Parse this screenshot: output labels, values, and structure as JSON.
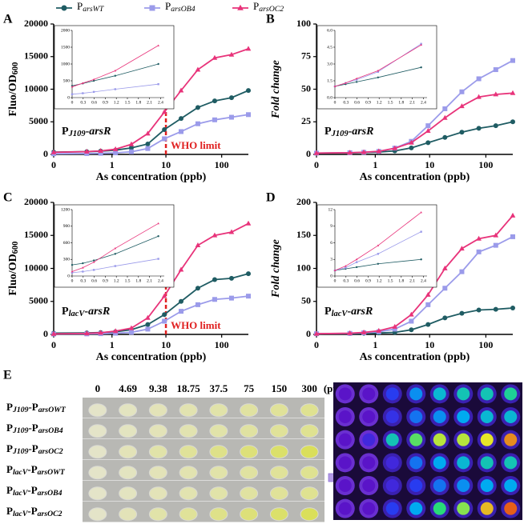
{
  "chart_data": [
    {
      "type": "line",
      "panel": "A",
      "ylabel": "Fluo/OD600",
      "xlabel": "As concentration (ppb)",
      "annotation": "PJ109-arsR",
      "threshold": {
        "x": 10,
        "label": "WHO limit"
      },
      "xscale": "log",
      "xlim": [
        0,
        300
      ],
      "xticks": [
        0,
        1,
        10,
        100
      ],
      "ylim": [
        0,
        20000
      ],
      "yticks": [
        0,
        5000,
        10000,
        15000,
        20000
      ],
      "x": [
        0,
        0.29,
        0.59,
        1.17,
        2.34,
        4.69,
        9.38,
        18.75,
        37.5,
        75,
        150,
        300
      ],
      "series": [
        {
          "name": "ParsWT",
          "color": "#1f5c63",
          "marker": "circle",
          "values": [
            350,
            420,
            500,
            650,
            1000,
            1600,
            3800,
            5500,
            7200,
            8200,
            8700,
            9800
          ]
        },
        {
          "name": "ParsOB4",
          "color": "#9b9bea",
          "marker": "square",
          "values": [
            100,
            130,
            170,
            250,
            400,
            900,
            2400,
            3500,
            4700,
            5300,
            5700,
            6100
          ]
        },
        {
          "name": "ParsOC2",
          "color": "#e8337a",
          "marker": "triangle",
          "values": [
            320,
            430,
            540,
            800,
            1550,
            3200,
            6500,
            9800,
            13000,
            14800,
            15300,
            16200
          ]
        }
      ]
    },
    {
      "type": "line",
      "inset": true,
      "xlim": [
        0,
        2.5
      ],
      "xticks": [
        0,
        0.3,
        0.6,
        0.9,
        1.2,
        1.5,
        1.8,
        2.1,
        2.4
      ],
      "ylim": [
        0,
        2000
      ],
      "yticks": [
        0,
        500,
        1000,
        1500,
        2000
      ],
      "x": [
        0,
        0.29,
        0.59,
        1.17,
        2.34
      ],
      "series": [
        {
          "color": "#1f5c63",
          "marker": "circle",
          "values": [
            350,
            420,
            500,
            650,
            1000
          ]
        },
        {
          "color": "#9b9bea",
          "marker": "square",
          "values": [
            100,
            130,
            170,
            250,
            400
          ]
        },
        {
          "color": "#e8337a",
          "marker": "triangle",
          "values": [
            320,
            430,
            540,
            800,
            1550
          ]
        }
      ]
    },
    {
      "type": "line",
      "panel": "B",
      "ylabel": "Fold change",
      "xlabel": "As concentration (ppb)",
      "annotation": "PJ109-arsR",
      "xscale": "log",
      "xlim": [
        0,
        300
      ],
      "xticks": [
        0,
        1,
        10,
        100
      ],
      "ylim": [
        0,
        100
      ],
      "yticks": [
        0,
        25,
        50,
        75,
        100
      ],
      "x": [
        0,
        0.29,
        0.59,
        1.17,
        2.34,
        4.69,
        9.38,
        18.75,
        37.5,
        75,
        150,
        300
      ],
      "series": [
        {
          "color": "#1f5c63",
          "marker": "circle",
          "values": [
            1,
            1.2,
            1.4,
            1.8,
            2.7,
            5,
            9,
            13,
            17,
            20,
            22,
            25
          ]
        },
        {
          "color": "#9b9bea",
          "marker": "square",
          "values": [
            1,
            1.3,
            1.6,
            2.3,
            4.8,
            10,
            22,
            35,
            48,
            58,
            65,
            72
          ]
        },
        {
          "color": "#e8337a",
          "marker": "triangle",
          "values": [
            1,
            1.3,
            1.7,
            2.4,
            4.7,
            9,
            18,
            28,
            37,
            44,
            46,
            47
          ]
        }
      ]
    },
    {
      "type": "line",
      "inset": true,
      "xlim": [
        0,
        2.5
      ],
      "xticks": [
        0,
        0.3,
        0.6,
        0.9,
        1.2,
        1.5,
        1.8,
        2.1,
        2.4
      ],
      "ylim": [
        0,
        6
      ],
      "yticks": [
        {
          "value": 0,
          "label": "0.0"
        },
        1.5,
        {
          "value": 3,
          "label": "3.0"
        },
        4.5,
        {
          "value": 6,
          "label": "6.0"
        }
      ],
      "x": [
        0,
        0.29,
        0.59,
        1.17,
        2.34
      ],
      "series": [
        {
          "color": "#1f5c63",
          "marker": "circle",
          "values": [
            1,
            1.2,
            1.4,
            1.8,
            2.7
          ]
        },
        {
          "color": "#9b9bea",
          "marker": "square",
          "values": [
            1,
            1.3,
            1.6,
            2.3,
            4.8
          ]
        },
        {
          "color": "#e8337a",
          "marker": "triangle",
          "values": [
            1,
            1.3,
            1.7,
            2.4,
            4.7
          ]
        }
      ]
    },
    {
      "type": "line",
      "panel": "C",
      "ylabel": "Fluo/OD600",
      "xlabel": "As concentration (ppb)",
      "annotation": "PlacV-arsR",
      "threshold": {
        "x": 10,
        "label": "WHO limit"
      },
      "xscale": "log",
      "xlim": [
        0,
        300
      ],
      "xticks": [
        0,
        1,
        10,
        100
      ],
      "ylim": [
        0,
        20000
      ],
      "yticks": [
        0,
        5000,
        10000,
        15000,
        20000
      ],
      "x": [
        0,
        0.29,
        0.59,
        1.17,
        2.34,
        4.69,
        9.38,
        18.75,
        37.5,
        75,
        150,
        300
      ],
      "series": [
        {
          "color": "#1f5c63",
          "marker": "circle",
          "values": [
            200,
            230,
            280,
            400,
            720,
            1500,
            3000,
            5000,
            7000,
            8300,
            8500,
            9200
          ]
        },
        {
          "color": "#9b9bea",
          "marker": "square",
          "values": [
            60,
            80,
            110,
            180,
            310,
            800,
            2000,
            3500,
            4500,
            5300,
            5500,
            5800
          ]
        },
        {
          "color": "#e8337a",
          "marker": "triangle",
          "values": [
            80,
            150,
            250,
            500,
            950,
            2500,
            5800,
            9800,
            13500,
            15000,
            15500,
            16800
          ]
        }
      ]
    },
    {
      "type": "line",
      "inset": true,
      "xlim": [
        0,
        2.5
      ],
      "xticks": [
        0,
        0.3,
        0.6,
        0.9,
        1.2,
        1.5,
        1.8,
        2.1,
        2.4
      ],
      "ylim": [
        0,
        1200
      ],
      "yticks": [
        0,
        300,
        600,
        900,
        1200
      ],
      "x": [
        0,
        0.29,
        0.59,
        1.17,
        2.34
      ],
      "series": [
        {
          "color": "#1f5c63",
          "marker": "circle",
          "values": [
            200,
            230,
            280,
            400,
            720
          ]
        },
        {
          "color": "#9b9bea",
          "marker": "square",
          "values": [
            60,
            80,
            110,
            180,
            310
          ]
        },
        {
          "color": "#e8337a",
          "marker": "triangle",
          "values": [
            80,
            150,
            250,
            500,
            950
          ]
        }
      ]
    },
    {
      "type": "line",
      "panel": "D",
      "ylabel": "Fold change",
      "xlabel": "As concentration (ppb)",
      "annotation": "PlacV-arsR",
      "xscale": "log",
      "xlim": [
        0,
        300
      ],
      "xticks": [
        0,
        1,
        10,
        100
      ],
      "ylim": [
        0,
        200
      ],
      "yticks": [
        0,
        50,
        100,
        150,
        200
      ],
      "x": [
        0,
        0.29,
        0.59,
        1.17,
        2.34,
        4.69,
        9.38,
        18.75,
        37.5,
        75,
        150,
        300
      ],
      "series": [
        {
          "color": "#1f5c63",
          "marker": "circle",
          "values": [
            1,
            1.3,
            1.6,
            2.2,
            3,
            7,
            15,
            25,
            32,
            37,
            38,
            40
          ]
        },
        {
          "color": "#9b9bea",
          "marker": "square",
          "values": [
            1,
            1.5,
            2.5,
            4,
            8,
            20,
            45,
            70,
            95,
            125,
            135,
            148
          ]
        },
        {
          "color": "#e8337a",
          "marker": "triangle",
          "values": [
            1,
            1.8,
            3,
            5.5,
            11.5,
            30,
            60,
            100,
            130,
            145,
            150,
            180
          ]
        }
      ]
    },
    {
      "type": "line",
      "inset": true,
      "xlim": [
        0,
        2.5
      ],
      "xticks": [
        0,
        0.3,
        0.6,
        0.9,
        1.2,
        1.5,
        1.8,
        2.1,
        2.4
      ],
      "ylim": [
        0,
        12
      ],
      "yticks": [
        0,
        3,
        6,
        9,
        12
      ],
      "x": [
        0,
        0.29,
        0.59,
        1.17,
        2.34
      ],
      "series": [
        {
          "color": "#1f5c63",
          "marker": "circle",
          "values": [
            1,
            1.3,
            1.6,
            2.2,
            3
          ]
        },
        {
          "color": "#9b9bea",
          "marker": "square",
          "values": [
            1,
            1.5,
            2.5,
            4,
            8
          ]
        },
        {
          "color": "#e8337a",
          "marker": "triangle",
          "values": [
            1,
            1.8,
            3,
            5.5,
            11.5
          ]
        }
      ]
    }
  ],
  "figure_e": {
    "panel": "E",
    "columns": [
      "0",
      "4.69",
      "9.38",
      "18.75",
      "37.5",
      "75",
      "150",
      "300"
    ],
    "unit": "(ppb)",
    "rows": [
      "PJ109-ParsOWT",
      "PJ109-ParsOB4",
      "PJ109-ParsOC2",
      "PlacV-ParsOWT",
      "PlacV-ParsOB4",
      "PlacV-ParsOC2"
    ]
  }
}
